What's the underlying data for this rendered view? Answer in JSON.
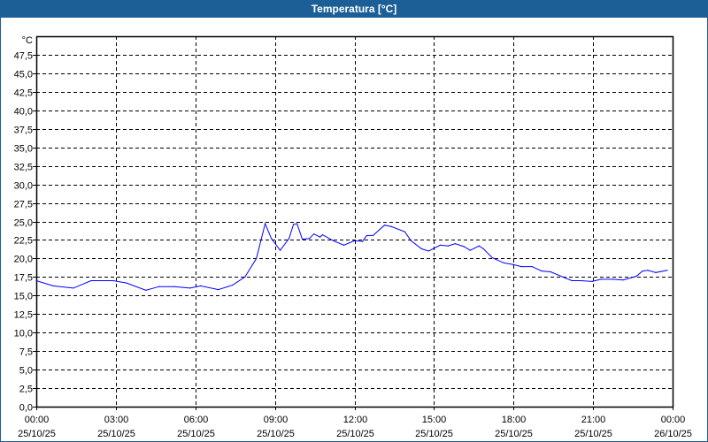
{
  "window": {
    "title": "Temperatura [°C]"
  },
  "chart_data": {
    "type": "line",
    "title": "Temperatura [°C]",
    "ylabel": "°C",
    "xlabel": "",
    "ylim": [
      0,
      50
    ],
    "yticks": [
      "0,0",
      "2,5",
      "5,0",
      "7,5",
      "10,0",
      "12,5",
      "15,0",
      "17,5",
      "20,0",
      "22,5",
      "25,0",
      "27,5",
      "30,0",
      "32,5",
      "35,0",
      "37,5",
      "40,0",
      "42,5",
      "45,0",
      "47,5"
    ],
    "xticks": [
      {
        "time": "00:00",
        "date": "25/10/25"
      },
      {
        "time": "03:00",
        "date": "25/10/25"
      },
      {
        "time": "06:00",
        "date": "25/10/25"
      },
      {
        "time": "09:00",
        "date": "25/10/25"
      },
      {
        "time": "12:00",
        "date": "25/10/25"
      },
      {
        "time": "15:00",
        "date": "25/10/25"
      },
      {
        "time": "18:00",
        "date": "25/10/25"
      },
      {
        "time": "21:00",
        "date": "25/10/25"
      },
      {
        "time": "00:00",
        "date": "26/10/25"
      }
    ],
    "xrange": [
      "25/10/25 00:00",
      "26/10/25 00:00"
    ],
    "grid": true,
    "line_color": "#0000ff",
    "series": [
      {
        "x": [
          "00:00",
          "00:38",
          "01:24",
          "02:04",
          "02:54",
          "03:24",
          "04:08",
          "04:38",
          "05:12",
          "05:48",
          "06:12",
          "06:52",
          "07:24",
          "07:52",
          "08:18",
          "08:38",
          "08:52",
          "09:12",
          "09:32",
          "09:42",
          "09:50",
          "10:02",
          "10:18",
          "10:28",
          "10:42",
          "10:48",
          "11:12",
          "11:36",
          "12:00",
          "12:18",
          "12:28",
          "12:42",
          "13:08",
          "13:24",
          "13:54",
          "14:08",
          "14:32",
          "14:48",
          "15:14",
          "15:32",
          "15:48",
          "16:08",
          "16:22",
          "16:42",
          "16:52",
          "17:12",
          "17:38",
          "17:58",
          "18:18",
          "18:42",
          "19:04",
          "19:24",
          "19:52",
          "20:12",
          "20:32",
          "20:58",
          "21:18",
          "21:44",
          "22:08",
          "22:38",
          "22:52",
          "23:04",
          "23:22",
          "23:48"
        ],
        "y": [
          17.0,
          16.3,
          16.0,
          17.0,
          17.0,
          16.7,
          15.7,
          16.2,
          16.2,
          16.0,
          16.3,
          15.8,
          16.4,
          17.5,
          20.0,
          24.7,
          22.7,
          21.1,
          22.7,
          24.6,
          24.7,
          22.6,
          22.7,
          23.3,
          22.9,
          23.2,
          22.4,
          21.8,
          22.4,
          22.3,
          23.1,
          23.1,
          24.5,
          24.3,
          23.6,
          22.4,
          21.3,
          21.0,
          21.8,
          21.7,
          22.0,
          21.6,
          21.1,
          21.7,
          21.3,
          20.1,
          19.4,
          19.2,
          18.9,
          18.9,
          18.3,
          18.2,
          17.5,
          17.0,
          17.0,
          16.9,
          17.2,
          17.2,
          17.1,
          17.6,
          18.3,
          18.4,
          18.1,
          18.4
        ]
      }
    ]
  }
}
